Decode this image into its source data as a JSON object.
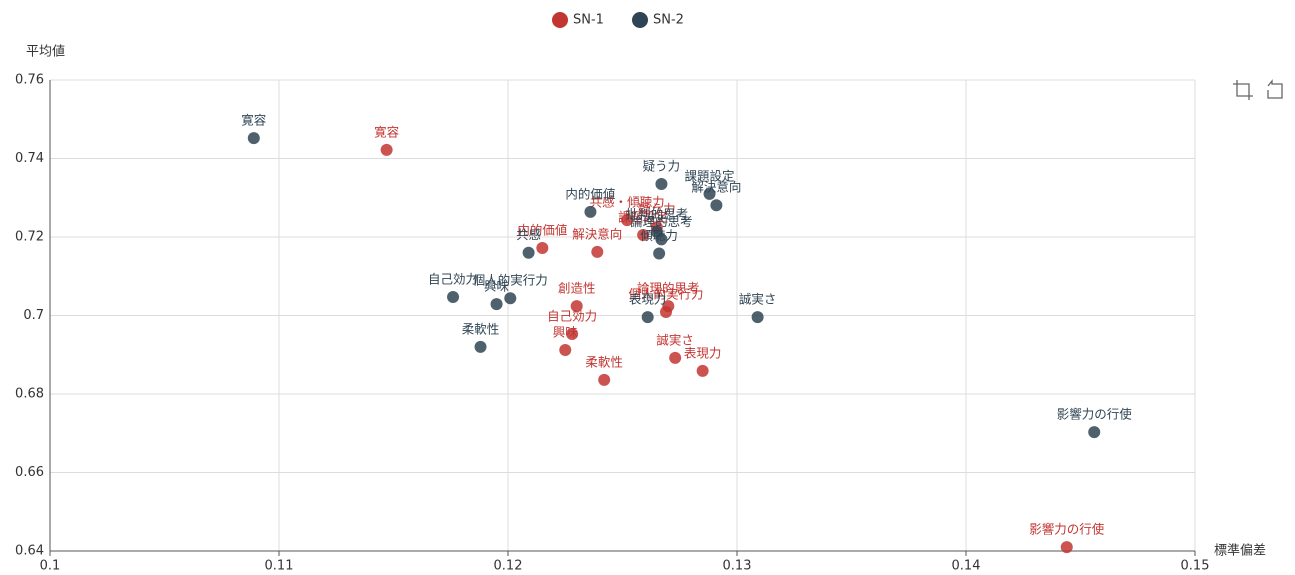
{
  "chart_data": {
    "type": "scatter",
    "x_label": "標準偏差",
    "y_label": "平均値",
    "xlim": [
      0.1,
      0.15
    ],
    "xticks": [
      0.1,
      0.11,
      0.12,
      0.13,
      0.14,
      0.15
    ],
    "ylim": [
      0.64,
      0.76
    ],
    "yticks": [
      0.64,
      0.66,
      0.68,
      0.7,
      0.72,
      0.74,
      0.76
    ],
    "grid": true,
    "legend": "top",
    "series": [
      {
        "name": "SN-1",
        "color": "#c23531",
        "labels": [
          "寛容",
          "共感・傾聴力",
          "課題設定",
          "疑う力",
          "内的価値",
          "解決意向",
          "創造性",
          "論理的思考",
          "個人的実行力",
          "自己効力",
          "興味",
          "柔軟性",
          "誠実さ",
          "表現力",
          "影響力の行使"
        ],
        "x": [
          0.1147,
          0.1252,
          0.1259,
          0.1265,
          0.1215,
          0.1239,
          0.123,
          0.127,
          0.1269,
          0.1228,
          0.1225,
          0.1242,
          0.1273,
          0.1285,
          0.1444
        ],
        "values": [
          0.7422,
          0.7243,
          0.7205,
          0.7225,
          0.7172,
          0.7162,
          0.7024,
          0.7024,
          0.7009,
          0.6953,
          0.6912,
          0.6836,
          0.6892,
          0.6859,
          0.641
        ]
      },
      {
        "name": "SN-2",
        "color": "#2f4554",
        "labels": [
          "寛容",
          "疑う力",
          "課題設定",
          "解決意向",
          "内的価値",
          "批判的思考",
          "論理的思考",
          "傾聴力",
          "共感",
          "自己効力",
          "個人的実行力",
          "興味",
          "柔軟性",
          "表現力",
          "誠実さ",
          "影響力の行使"
        ],
        "x": [
          0.1089,
          0.1267,
          0.1288,
          0.1291,
          0.1236,
          0.1265,
          0.1267,
          0.1266,
          0.1209,
          0.1176,
          0.1201,
          0.1195,
          0.1188,
          0.1261,
          0.1309,
          0.1456
        ],
        "values": [
          0.7452,
          0.7335,
          0.731,
          0.7281,
          0.7264,
          0.7213,
          0.7194,
          0.7158,
          0.716,
          0.7047,
          0.7044,
          0.7029,
          0.692,
          0.6996,
          0.6996,
          0.6703
        ]
      }
    ]
  }
}
